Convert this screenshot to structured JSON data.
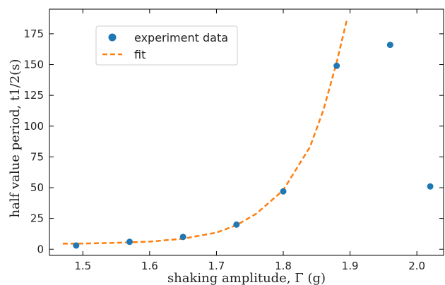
{
  "chart_data": {
    "type": "scatter",
    "title": "",
    "xlabel": "shaking amplitude, Γ (g)",
    "ylabel": "half value period, t1/2(s)",
    "xlim": [
      1.45,
      2.04
    ],
    "ylim": [
      -5,
      195
    ],
    "x_ticks": [
      1.5,
      1.6,
      1.7,
      1.8,
      1.9,
      2.0
    ],
    "y_ticks": [
      0,
      25,
      50,
      75,
      100,
      125,
      150,
      175
    ],
    "grid": false,
    "legend_position": "upper-left",
    "series": [
      {
        "name": "experiment data",
        "kind": "scatter",
        "color": "#1f77b4",
        "x": [
          1.49,
          1.57,
          1.65,
          1.73,
          1.8,
          1.88,
          1.96,
          2.02
        ],
        "y": [
          3,
          6,
          10,
          20,
          47,
          149,
          166,
          51
        ]
      },
      {
        "name": "fit",
        "kind": "line",
        "style": "dashed",
        "color": "#ff7f0e",
        "x": [
          1.47,
          1.5,
          1.55,
          1.6,
          1.65,
          1.7,
          1.73,
          1.76,
          1.8,
          1.84,
          1.86,
          1.88,
          1.895
        ],
        "y": [
          4.5,
          4.6,
          5.2,
          6.2,
          8.5,
          13.5,
          19.5,
          29,
          48,
          83,
          113,
          152,
          186
        ]
      }
    ]
  }
}
